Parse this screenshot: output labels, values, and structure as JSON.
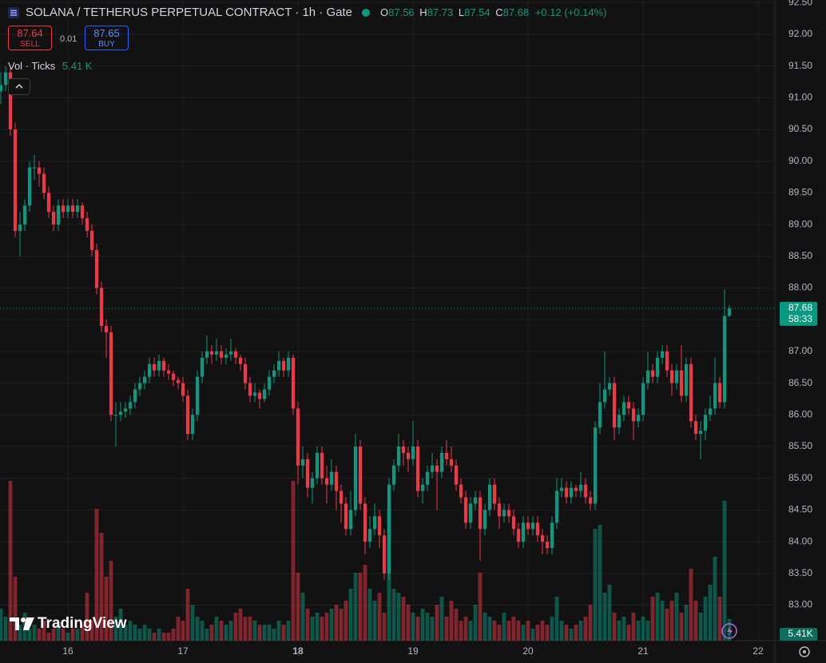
{
  "chart_data": {
    "type": "candlestick",
    "title": "SOLANA / TETHERUS PERPETUAL CONTRACT · 1h · Gate",
    "ohlc_labels": [
      "O",
      "H",
      "L",
      "C"
    ],
    "change": "+0.12 (+0.14%)",
    "sell": {
      "price": 87.64,
      "label": "SELL"
    },
    "spread": 0.01,
    "buy": {
      "price": 87.65,
      "label": "BUY"
    },
    "volume_title": "Vol · Ticks",
    "volume_label": "5.41 K",
    "volume_axis_label": "5.41K",
    "countdown": "58:33",
    "brand": "TradingView",
    "up_color": "#089981",
    "down_color": "#f23645",
    "ylim": [
      82.44,
      92.54
    ],
    "yticks": [
      {
        "value": 83,
        "label": "83.00"
      },
      {
        "value": 83.5,
        "label": "83.50"
      },
      {
        "value": 84,
        "label": "84.00"
      },
      {
        "value": 84.5,
        "label": "84.50"
      },
      {
        "value": 85,
        "label": "85.00"
      },
      {
        "value": 85.5,
        "label": "85.50"
      },
      {
        "value": 86,
        "label": "86.00"
      },
      {
        "value": 86.5,
        "label": "86.50"
      },
      {
        "value": 87,
        "label": "87.00"
      },
      {
        "value": 87.5,
        "label": "87.50"
      },
      {
        "value": 88,
        "label": "88.00"
      },
      {
        "value": 88.5,
        "label": "88.50"
      },
      {
        "value": 89,
        "label": "89.00"
      },
      {
        "value": 89.5,
        "label": "89.50"
      },
      {
        "value": 90,
        "label": "90.00"
      },
      {
        "value": 90.5,
        "label": "90.50"
      },
      {
        "value": 91,
        "label": "91.00"
      },
      {
        "value": 91.5,
        "label": "91.50"
      },
      {
        "value": 92,
        "label": "92.00"
      },
      {
        "value": 92.5,
        "label": "92.50"
      }
    ],
    "xlim": [
      -0.17,
      161.5
    ],
    "xticks": [
      {
        "value": 14,
        "label": "16"
      },
      {
        "value": 38,
        "label": "17"
      },
      {
        "value": 62,
        "label": "18"
      },
      {
        "value": 86,
        "label": "19"
      },
      {
        "value": 110,
        "label": "20"
      },
      {
        "value": 134,
        "label": "21"
      },
      {
        "value": 158,
        "label": "22"
      }
    ],
    "volume_lim": [
      0,
      40
    ],
    "candles": [
      [
        91.1,
        91.4,
        90.9,
        91.2,
        8
      ],
      [
        91.2,
        91.5,
        91.1,
        91.4,
        6
      ],
      [
        91.4,
        91.5,
        90.4,
        90.5,
        40
      ],
      [
        90.5,
        90.6,
        88.8,
        88.9,
        16
      ],
      [
        88.9,
        89.2,
        88.5,
        89.0,
        4
      ],
      [
        89.0,
        89.4,
        88.9,
        89.3,
        7
      ],
      [
        89.3,
        90.0,
        89.2,
        89.9,
        3
      ],
      [
        89.9,
        90.1,
        89.7,
        89.9,
        4
      ],
      [
        89.9,
        90.0,
        89.6,
        89.8,
        3
      ],
      [
        89.8,
        89.9,
        89.4,
        89.5,
        5
      ],
      [
        89.5,
        89.6,
        89.1,
        89.2,
        2
      ],
      [
        89.2,
        89.3,
        88.9,
        89.0,
        3
      ],
      [
        89.0,
        89.4,
        88.9,
        89.3,
        4
      ],
      [
        89.3,
        89.4,
        89.1,
        89.2,
        3
      ],
      [
        89.2,
        89.4,
        89.1,
        89.3,
        2
      ],
      [
        89.3,
        89.4,
        89.1,
        89.2,
        3
      ],
      [
        89.2,
        89.4,
        89.1,
        89.3,
        3
      ],
      [
        89.3,
        89.35,
        89.0,
        89.1,
        4
      ],
      [
        89.1,
        89.2,
        88.8,
        88.9,
        12
      ],
      [
        88.9,
        89.0,
        88.5,
        88.6,
        5
      ],
      [
        88.6,
        88.7,
        87.9,
        88.0,
        33
      ],
      [
        88.0,
        88.1,
        87.3,
        87.4,
        27
      ],
      [
        87.4,
        87.5,
        86.9,
        87.3,
        16
      ],
      [
        87.3,
        87.4,
        85.9,
        86.0,
        20
      ],
      [
        86.0,
        86.2,
        85.5,
        86.0,
        6
      ],
      [
        86.0,
        86.2,
        85.9,
        86.05,
        8
      ],
      [
        86.05,
        86.2,
        85.95,
        86.1,
        4
      ],
      [
        86.1,
        86.3,
        86.0,
        86.2,
        5
      ],
      [
        86.2,
        86.5,
        86.1,
        86.4,
        4
      ],
      [
        86.4,
        86.6,
        86.3,
        86.5,
        3
      ],
      [
        86.5,
        86.7,
        86.4,
        86.6,
        4
      ],
      [
        86.6,
        86.9,
        86.5,
        86.8,
        3
      ],
      [
        86.8,
        86.9,
        86.6,
        86.7,
        2
      ],
      [
        86.7,
        86.95,
        86.6,
        86.85,
        3
      ],
      [
        86.85,
        86.9,
        86.6,
        86.7,
        2
      ],
      [
        86.7,
        86.8,
        86.55,
        86.65,
        2
      ],
      [
        86.65,
        86.7,
        86.45,
        86.55,
        3
      ],
      [
        86.55,
        86.6,
        86.4,
        86.5,
        6
      ],
      [
        86.5,
        86.6,
        86.2,
        86.3,
        5
      ],
      [
        86.3,
        86.4,
        85.6,
        85.7,
        13
      ],
      [
        85.7,
        86.1,
        85.6,
        86.0,
        9
      ],
      [
        86.0,
        86.7,
        85.9,
        86.6,
        6
      ],
      [
        86.6,
        87.0,
        86.5,
        86.9,
        5
      ],
      [
        86.9,
        87.25,
        86.8,
        87.0,
        3
      ],
      [
        87.0,
        87.1,
        86.8,
        86.95,
        4
      ],
      [
        86.95,
        87.2,
        86.85,
        87.0,
        6
      ],
      [
        87.0,
        87.1,
        86.8,
        86.9,
        5
      ],
      [
        86.9,
        87.05,
        86.8,
        86.95,
        4
      ],
      [
        86.95,
        87.2,
        86.85,
        87.0,
        5
      ],
      [
        87.0,
        87.05,
        86.8,
        86.9,
        7
      ],
      [
        86.9,
        86.95,
        86.7,
        86.8,
        8
      ],
      [
        86.8,
        86.9,
        86.4,
        86.5,
        6
      ],
      [
        86.5,
        86.6,
        86.2,
        86.3,
        6
      ],
      [
        86.3,
        86.5,
        86.2,
        86.35,
        5
      ],
      [
        86.35,
        86.4,
        86.1,
        86.25,
        4
      ],
      [
        86.25,
        86.5,
        86.2,
        86.4,
        4
      ],
      [
        86.4,
        86.7,
        86.3,
        86.6,
        4
      ],
      [
        86.6,
        86.8,
        86.5,
        86.7,
        3
      ],
      [
        86.7,
        87.0,
        86.6,
        86.85,
        5
      ],
      [
        86.85,
        86.9,
        86.6,
        86.7,
        4
      ],
      [
        86.7,
        87.0,
        86.6,
        86.9,
        5
      ],
      [
        86.9,
        86.95,
        86.0,
        86.1,
        40
      ],
      [
        86.1,
        86.2,
        84.9,
        85.2,
        17
      ],
      [
        85.2,
        85.5,
        85.0,
        85.3,
        12
      ],
      [
        85.3,
        85.4,
        84.7,
        84.85,
        8
      ],
      [
        84.85,
        85.1,
        84.6,
        85.0,
        6
      ],
      [
        85.0,
        85.5,
        84.9,
        85.4,
        7
      ],
      [
        85.4,
        85.5,
        84.9,
        85.0,
        6
      ],
      [
        85.0,
        85.2,
        84.6,
        84.9,
        7
      ],
      [
        84.9,
        85.3,
        84.8,
        85.1,
        8
      ],
      [
        85.1,
        85.2,
        84.5,
        84.8,
        9
      ],
      [
        84.8,
        84.9,
        84.3,
        84.6,
        8
      ],
      [
        84.6,
        84.7,
        84.1,
        84.2,
        10
      ],
      [
        84.2,
        84.8,
        84.1,
        84.5,
        13
      ],
      [
        84.5,
        85.7,
        84.4,
        85.5,
        17
      ],
      [
        85.5,
        85.6,
        84.5,
        84.6,
        17
      ],
      [
        84.6,
        84.7,
        83.8,
        84.0,
        19
      ],
      [
        84.0,
        84.4,
        83.9,
        84.2,
        13
      ],
      [
        84.2,
        84.6,
        84.1,
        84.4,
        10
      ],
      [
        84.4,
        84.5,
        83.9,
        84.1,
        12
      ],
      [
        84.1,
        84.2,
        83.4,
        83.5,
        7
      ],
      [
        83.5,
        85.0,
        83.4,
        84.9,
        33
      ],
      [
        84.9,
        85.3,
        84.8,
        85.2,
        13
      ],
      [
        85.2,
        85.7,
        85.1,
        85.5,
        12
      ],
      [
        85.5,
        85.6,
        85.2,
        85.4,
        11
      ],
      [
        85.4,
        85.5,
        85.1,
        85.3,
        9
      ],
      [
        85.3,
        85.9,
        85.2,
        85.5,
        7
      ],
      [
        85.5,
        85.6,
        84.7,
        84.8,
        6
      ],
      [
        84.8,
        85.0,
        84.6,
        84.9,
        8
      ],
      [
        84.9,
        85.2,
        84.8,
        85.1,
        7
      ],
      [
        85.1,
        85.4,
        85.0,
        85.2,
        6
      ],
      [
        85.2,
        85.3,
        84.5,
        85.1,
        9
      ],
      [
        85.1,
        85.5,
        85.0,
        85.4,
        11
      ],
      [
        85.4,
        85.6,
        85.2,
        85.3,
        6
      ],
      [
        85.3,
        85.5,
        85.1,
        85.2,
        10
      ],
      [
        85.2,
        85.3,
        84.8,
        84.9,
        8
      ],
      [
        84.9,
        85.0,
        84.6,
        84.7,
        5
      ],
      [
        84.7,
        84.8,
        84.2,
        84.3,
        6
      ],
      [
        84.3,
        84.7,
        84.2,
        84.6,
        5
      ],
      [
        84.6,
        84.8,
        84.5,
        84.7,
        9
      ],
      [
        84.7,
        84.8,
        83.7,
        84.2,
        17
      ],
      [
        84.2,
        84.6,
        84.1,
        84.5,
        7
      ],
      [
        84.5,
        85.0,
        84.4,
        84.9,
        6
      ],
      [
        84.9,
        85.0,
        84.5,
        84.6,
        5
      ],
      [
        84.6,
        84.7,
        84.2,
        84.4,
        4
      ],
      [
        84.4,
        84.6,
        84.3,
        84.5,
        7
      ],
      [
        84.5,
        84.6,
        84.3,
        84.4,
        5
      ],
      [
        84.4,
        84.5,
        84.1,
        84.2,
        6
      ],
      [
        84.2,
        84.3,
        83.9,
        84.0,
        5
      ],
      [
        84.0,
        84.4,
        83.9,
        84.3,
        4
      ],
      [
        84.3,
        84.4,
        84.1,
        84.2,
        5
      ],
      [
        84.2,
        84.4,
        84.1,
        84.3,
        3
      ],
      [
        84.3,
        84.4,
        84.0,
        84.1,
        4
      ],
      [
        84.1,
        84.2,
        83.8,
        84.0,
        5
      ],
      [
        84.0,
        84.1,
        83.8,
        83.9,
        4
      ],
      [
        83.9,
        84.4,
        83.8,
        84.3,
        6
      ],
      [
        84.3,
        85.0,
        84.2,
        84.8,
        11
      ],
      [
        84.8,
        85.0,
        84.7,
        84.85,
        5
      ],
      [
        84.85,
        84.95,
        84.6,
        84.7,
        4
      ],
      [
        84.7,
        84.95,
        84.6,
        84.85,
        3
      ],
      [
        84.85,
        84.9,
        84.7,
        84.8,
        4
      ],
      [
        84.8,
        85.1,
        84.7,
        84.9,
        5
      ],
      [
        84.9,
        85.0,
        84.6,
        84.7,
        6
      ],
      [
        84.7,
        84.8,
        84.5,
        84.6,
        9
      ],
      [
        84.6,
        85.9,
        84.5,
        85.8,
        28
      ],
      [
        85.8,
        86.5,
        85.7,
        86.2,
        29
      ],
      [
        86.2,
        87.0,
        86.1,
        86.4,
        12
      ],
      [
        86.4,
        86.6,
        86.3,
        86.5,
        14
      ],
      [
        86.5,
        86.6,
        85.6,
        85.8,
        7
      ],
      [
        85.8,
        86.1,
        85.7,
        86.0,
        5
      ],
      [
        86.0,
        86.3,
        85.9,
        86.2,
        6
      ],
      [
        86.2,
        86.3,
        86.0,
        86.1,
        4
      ],
      [
        86.1,
        86.2,
        85.6,
        85.9,
        7
      ],
      [
        85.9,
        86.1,
        85.8,
        86.0,
        5
      ],
      [
        86.0,
        86.6,
        85.9,
        86.5,
        6
      ],
      [
        86.5,
        87.0,
        86.4,
        86.7,
        5
      ],
      [
        86.7,
        86.8,
        86.5,
        86.6,
        11
      ],
      [
        86.6,
        87.0,
        86.5,
        86.9,
        12
      ],
      [
        86.9,
        87.1,
        86.8,
        87.0,
        10
      ],
      [
        87.0,
        87.1,
        86.6,
        86.7,
        8
      ],
      [
        86.7,
        86.8,
        86.3,
        86.5,
        10
      ],
      [
        86.5,
        86.8,
        86.4,
        86.7,
        12
      ],
      [
        86.7,
        87.1,
        86.2,
        86.3,
        7
      ],
      [
        86.3,
        86.9,
        86.2,
        86.8,
        9
      ],
      [
        86.8,
        86.9,
        85.8,
        85.9,
        18
      ],
      [
        85.9,
        86.0,
        85.6,
        85.7,
        10
      ],
      [
        85.7,
        85.9,
        85.3,
        85.75,
        7
      ],
      [
        85.75,
        86.1,
        85.6,
        86.0,
        11
      ],
      [
        86.0,
        86.3,
        85.9,
        86.1,
        14
      ],
      [
        86.1,
        86.9,
        86.0,
        86.5,
        21
      ],
      [
        86.5,
        86.6,
        86.1,
        86.2,
        11
      ],
      [
        86.2,
        87.98,
        86.1,
        87.56,
        35
      ],
      [
        87.56,
        87.73,
        87.54,
        87.68,
        5.41
      ]
    ]
  }
}
